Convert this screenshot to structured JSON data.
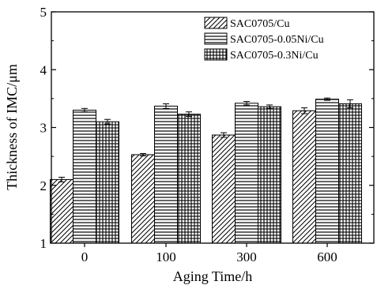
{
  "chart_data": {
    "type": "bar",
    "xlabel": "Aging Time/h",
    "ylabel": "Thickness of IMC/μm",
    "categories": [
      "0",
      "100",
      "300",
      "600"
    ],
    "ylim": [
      1,
      5
    ],
    "yticks": [
      "1",
      "2",
      "3",
      "4",
      "5"
    ],
    "grid": false,
    "legend_position": "top-right",
    "series": [
      {
        "name": "SAC0705/Cu",
        "pattern": "diagonal-hatch",
        "values": [
          2.1,
          2.53,
          2.87,
          3.29
        ],
        "errors": [
          0.04,
          0.02,
          0.04,
          0.05
        ]
      },
      {
        "name": "SAC0705-0.05Ni/Cu",
        "pattern": "horizontal-lines",
        "values": [
          3.3,
          3.37,
          3.42,
          3.49
        ],
        "errors": [
          0.03,
          0.04,
          0.03,
          0.02
        ]
      },
      {
        "name": "SAC0705-0.3Ni/Cu",
        "pattern": "crosshatch",
        "values": [
          3.1,
          3.23,
          3.36,
          3.41
        ],
        "errors": [
          0.04,
          0.04,
          0.03,
          0.07
        ]
      }
    ]
  }
}
